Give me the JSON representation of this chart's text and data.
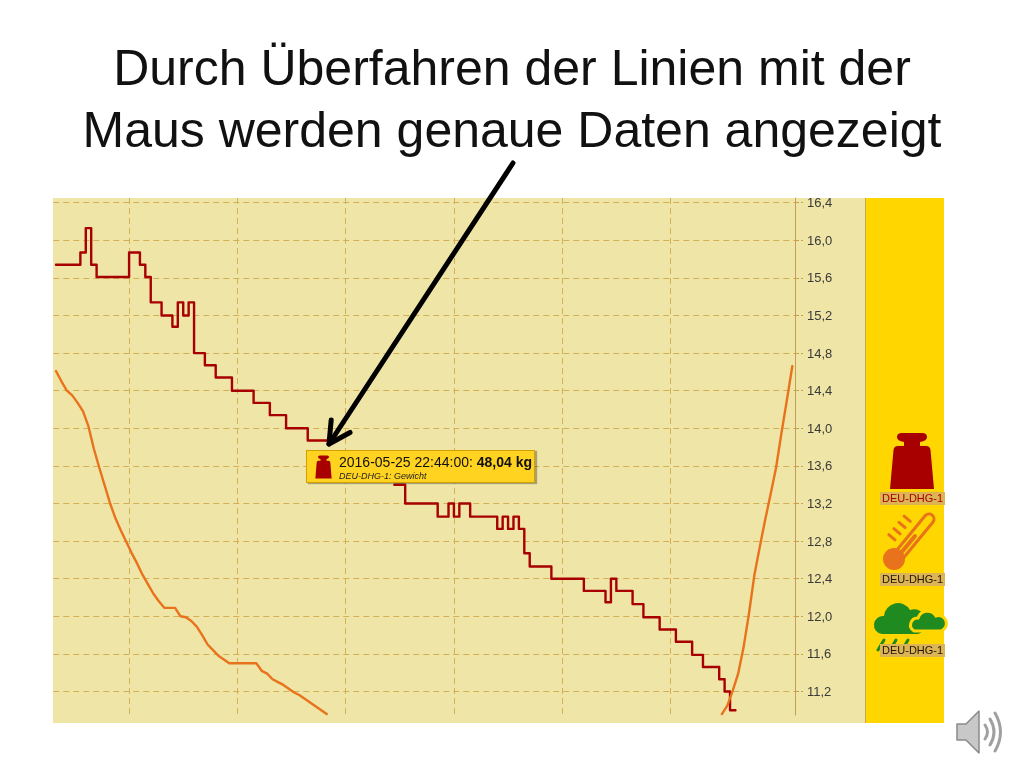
{
  "chart_data": {
    "type": "line",
    "title": "Durch Überfahren der Linien mit der Maus werden genaue Daten angezeigt",
    "categories": [
      null,
      null,
      null,
      null,
      null,
      null,
      null,
      null,
      null,
      null,
      null,
      null,
      null,
      null,
      null,
      null,
      null,
      null,
      null,
      null,
      null,
      null,
      null,
      null,
      null,
      null,
      null,
      null,
      null,
      null,
      null,
      null,
      null,
      null,
      null,
      null,
      null,
      null,
      null,
      null,
      null,
      null,
      null,
      null,
      null,
      null,
      null,
      null,
      null,
      null,
      null,
      null,
      null,
      null,
      null,
      null,
      null,
      null,
      null,
      null,
      null,
      null,
      null,
      null,
      null,
      null,
      null,
      null,
      null,
      null,
      null,
      null,
      null,
      null,
      null,
      null,
      null,
      null,
      null,
      null,
      null,
      null,
      null,
      null,
      null,
      null,
      null,
      null,
      null,
      null,
      null,
      null,
      null,
      null,
      null,
      null,
      null,
      null,
      null,
      null,
      null,
      null,
      null,
      null,
      null,
      null,
      null,
      null,
      null,
      null,
      null,
      null,
      null,
      null,
      null,
      null,
      null,
      null,
      null,
      null,
      null,
      null,
      null,
      null,
      null,
      null,
      null,
      null,
      null,
      null,
      null,
      null,
      null,
      null,
      null,
      null,
      null
    ],
    "series": [
      {
        "name": "DEU-DHG-1",
        "type": "step",
        "color": "#a80000",
        "values": [
          15.74,
          15.74,
          15.74,
          15.74,
          15.74,
          15.87,
          16.13,
          15.74,
          15.61,
          15.61,
          15.61,
          15.61,
          15.61,
          15.61,
          15.87,
          15.87,
          15.74,
          15.61,
          15.34,
          15.34,
          15.2,
          15.2,
          15.08,
          15.34,
          15.2,
          15.34,
          14.8,
          14.8,
          14.67,
          14.67,
          14.54,
          14.54,
          14.54,
          14.4,
          14.4,
          14.4,
          14.4,
          14.27,
          14.27,
          14.27,
          14.14,
          14.14,
          14.14,
          14.0,
          14.0,
          14.0,
          14.0,
          13.87,
          13.87,
          13.87,
          13.87,
          null,
          null,
          null,
          null,
          null,
          null,
          null,
          null,
          null,
          null,
          null,
          null,
          13.4,
          13.4,
          13.2,
          13.2,
          13.2,
          13.2,
          13.2,
          13.2,
          13.06,
          13.06,
          13.2,
          13.06,
          13.2,
          13.2,
          13.06,
          13.06,
          13.06,
          13.06,
          13.06,
          12.93,
          13.06,
          12.93,
          13.06,
          12.93,
          12.67,
          12.53,
          12.53,
          12.53,
          12.53,
          12.4,
          12.4,
          12.4,
          12.4,
          12.4,
          12.4,
          12.27,
          12.27,
          12.27,
          12.27,
          12.15,
          12.4,
          12.27,
          12.27,
          12.27,
          12.13,
          12.13,
          11.99,
          11.99,
          11.99,
          11.86,
          11.86,
          11.86,
          11.73,
          11.73,
          11.73,
          11.59,
          11.59,
          11.46,
          11.46,
          11.46,
          11.33,
          11.2,
          11.0,
          null,
          null,
          null,
          null,
          null,
          null,
          null,
          null,
          null,
          null,
          null
        ]
      },
      {
        "name": "DEU-DHG-1",
        "color": "#e8731c",
        "values": [
          14.61,
          14.5,
          14.4,
          14.35,
          14.27,
          14.18,
          14.02,
          13.78,
          13.58,
          13.39,
          13.2,
          13.04,
          12.91,
          12.79,
          12.67,
          12.56,
          12.44,
          12.34,
          12.24,
          12.16,
          12.09,
          12.09,
          12.09,
          12.0,
          11.99,
          11.95,
          11.89,
          11.8,
          11.7,
          11.64,
          11.58,
          11.54,
          11.5,
          11.5,
          11.5,
          11.5,
          11.5,
          11.5,
          11.42,
          11.39,
          11.33,
          11.3,
          11.27,
          11.23,
          11.19,
          11.16,
          11.12,
          11.08,
          11.04,
          11.0,
          10.96,
          null,
          null,
          null,
          null,
          null,
          null,
          null,
          null,
          null,
          null,
          null,
          null,
          null,
          null,
          null,
          null,
          null,
          null,
          null,
          null,
          null,
          null,
          null,
          null,
          null,
          null,
          null,
          null,
          null,
          null,
          null,
          null,
          null,
          null,
          null,
          null,
          null,
          null,
          null,
          null,
          null,
          null,
          null,
          null,
          null,
          null,
          null,
          null,
          null,
          null,
          null,
          null,
          null,
          null,
          null,
          null,
          null,
          null,
          null,
          null,
          null,
          null,
          null,
          null,
          null,
          null,
          null,
          null,
          null,
          null,
          null,
          null,
          10.96,
          11.05,
          11.21,
          11.39,
          11.67,
          12.03,
          12.44,
          12.74,
          13.03,
          13.3,
          13.58,
          13.95,
          14.3,
          14.66
        ]
      },
      {
        "name": "DEU-DHG-1",
        "color": "#1f8a1f",
        "values": [
          null,
          null,
          null,
          null,
          null,
          null,
          null,
          null,
          null,
          null,
          null,
          null,
          null,
          null,
          null,
          null,
          null,
          null,
          null,
          null,
          null,
          null,
          null,
          null,
          null,
          null,
          null,
          null,
          null,
          null,
          null,
          null,
          null,
          null,
          null,
          null,
          null,
          null,
          null,
          null,
          null,
          null,
          null,
          null,
          null,
          null,
          null,
          null,
          null,
          null,
          null,
          null,
          null,
          null,
          null,
          null,
          null,
          null,
          null,
          null,
          null,
          null,
          null,
          null,
          null,
          null,
          null,
          null,
          null,
          null,
          null,
          null,
          null,
          null,
          null,
          null,
          null,
          null,
          null,
          null,
          null,
          null,
          null,
          null,
          null,
          null,
          null,
          null,
          null,
          null,
          null,
          null,
          null,
          null,
          null,
          null,
          null,
          null,
          null,
          null,
          null,
          null,
          null,
          null,
          null,
          null,
          null,
          null,
          null,
          null,
          null,
          null,
          null,
          null,
          null,
          null,
          null,
          null,
          null,
          null,
          null,
          null,
          null,
          null,
          null,
          null,
          null,
          null,
          null,
          null,
          null,
          null,
          null,
          null,
          null,
          null,
          null
        ]
      }
    ],
    "ylim": [
      10.95,
      16.45
    ],
    "yticks": [
      {
        "value": 11.2,
        "label": "11,2"
      },
      {
        "value": 11.6,
        "label": "11,6"
      },
      {
        "value": 12.0,
        "label": "12,0"
      },
      {
        "value": 12.4,
        "label": "12,4"
      },
      {
        "value": 12.8,
        "label": "12,8"
      },
      {
        "value": 13.2,
        "label": "13,2"
      },
      {
        "value": 13.6,
        "label": "13,6"
      },
      {
        "value": 14.0,
        "label": "14,0"
      },
      {
        "value": 14.4,
        "label": "14,4"
      },
      {
        "value": 14.8,
        "label": "14,8"
      },
      {
        "value": 15.2,
        "label": "15,2"
      },
      {
        "value": 15.6,
        "label": "15,6"
      },
      {
        "value": 16.0,
        "label": "16,0"
      },
      {
        "value": 16.4,
        "label": "16,4"
      }
    ],
    "grid": true,
    "legend": "right",
    "annotations": [
      "2016-05-25 22:44:00: 48,04 kg",
      "DEU-DHG-1: Gewicht"
    ]
  }
}
